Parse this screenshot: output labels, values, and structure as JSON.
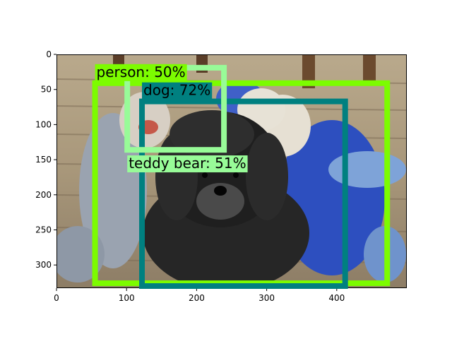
{
  "image": {
    "scene": "black poodle lying on a wooden deck in front of knitted sock-monkey dolls",
    "width_units": 500,
    "height_units": 333
  },
  "axes": {
    "xlim": [
      0,
      500
    ],
    "ylim": [
      333,
      0
    ],
    "x_ticks": [
      "0",
      "100",
      "200",
      "300",
      "400"
    ],
    "x_tick_values": [
      0,
      100,
      200,
      300,
      400
    ],
    "y_ticks": [
      "0",
      "50",
      "100",
      "150",
      "200",
      "250",
      "300"
    ],
    "y_tick_values": [
      0,
      50,
      100,
      150,
      200,
      250,
      300
    ]
  },
  "detections": [
    {
      "label": "person: 50%",
      "color": "#7CFC00",
      "x0": 55,
      "y0": 41,
      "x1": 472,
      "y1": 326,
      "label_x": 55,
      "label_y": 30
    },
    {
      "label": "dog: 72%",
      "color": "#008080",
      "x0": 122,
      "y0": 67,
      "x1": 412,
      "y1": 330,
      "label_x": 122,
      "label_y": 56
    },
    {
      "label": "teddy bear: 51%",
      "color": "#98FB98",
      "x0": 101,
      "y0": 19,
      "x1": 239,
      "y1": 136,
      "label_x": 101,
      "label_y": 160
    }
  ]
}
